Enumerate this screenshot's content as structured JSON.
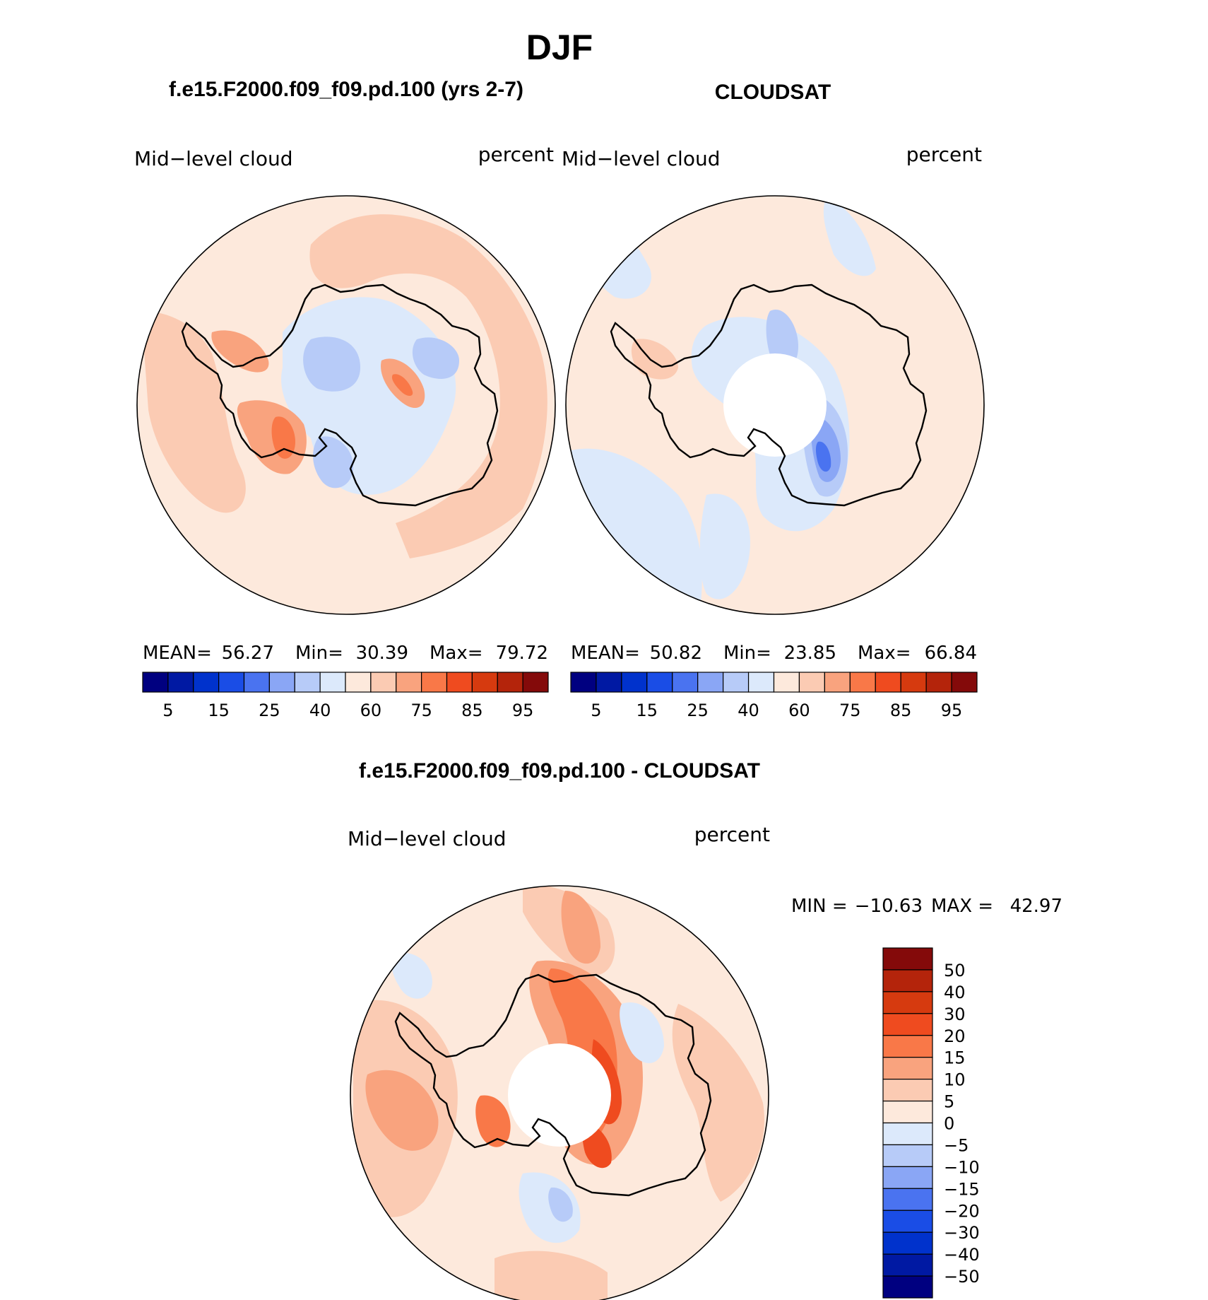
{
  "title": "DJF",
  "colors": {
    "scale": [
      "#000080",
      "#0019a3",
      "#0032cc",
      "#1a4de6",
      "#4a73f0",
      "#8aa6f5",
      "#b7cbf8",
      "#dce9fb",
      "#fde9dc",
      "#fbcbb3",
      "#f9a37e",
      "#f97848",
      "#ef4b1f",
      "#d63a0f",
      "#b4240b",
      "#840a0a"
    ],
    "diff": [
      "#000080",
      "#0019a3",
      "#0032cc",
      "#1a4de6",
      "#4a73f0",
      "#8aa6f5",
      "#b7cbf8",
      "#dce9fb",
      "#fde9dc",
      "#fbcbb3",
      "#f9a37e",
      "#f97848",
      "#ef4b1f",
      "#d63a0f",
      "#b4240b",
      "#840a0a"
    ],
    "coast": "#000000"
  },
  "chart_data": [
    {
      "type": "heatmap",
      "projection": "south-polar-stereographic",
      "title": "f.e15.F2000.f09_f09.pd.100 (yrs 2-7)",
      "left_label": "Mid−level cloud",
      "right_label": "percent",
      "stats": {
        "mean_label": "MEAN=",
        "mean": "56.27",
        "min_label": "Min=",
        "min": "30.39",
        "max_label": "Max=",
        "max": "79.72"
      },
      "colorbar": {
        "orientation": "horizontal",
        "levels": [
          5,
          10,
          15,
          20,
          25,
          30,
          40,
          50,
          60,
          70,
          75,
          80,
          85,
          90,
          95
        ],
        "tick_labels": [
          "5",
          "15",
          "25",
          "40",
          "60",
          "75",
          "85",
          "95"
        ]
      },
      "regions": [
        {
          "desc": "ocean background",
          "level_index": 8
        },
        {
          "desc": "Antarctic interior",
          "level_index": 7
        },
        {
          "desc": "Ross/Pacific sector band",
          "level_index": 9
        },
        {
          "desc": "Peninsula coast",
          "level_index": 11
        },
        {
          "desc": "interior low",
          "level_index": 6
        }
      ]
    },
    {
      "type": "heatmap",
      "projection": "south-polar-stereographic",
      "title": "CLOUDSAT",
      "left_label": "Mid−level cloud",
      "right_label": "percent",
      "stats": {
        "mean_label": "MEAN=",
        "mean": "50.82",
        "min_label": "Min=",
        "min": "23.85",
        "max_label": "Max=",
        "max": "66.84"
      },
      "colorbar": {
        "orientation": "horizontal",
        "levels": [
          5,
          10,
          15,
          20,
          25,
          30,
          40,
          50,
          60,
          70,
          75,
          80,
          85,
          90,
          95
        ],
        "tick_labels": [
          "5",
          "15",
          "25",
          "40",
          "60",
          "75",
          "85",
          "95"
        ]
      },
      "regions": [
        {
          "desc": "ocean background",
          "level_index": 8
        },
        {
          "desc": "interior",
          "level_index": 7
        },
        {
          "desc": "East Antarctica low",
          "level_index": 5
        },
        {
          "desc": "missing polar cap",
          "level_index": null
        }
      ]
    },
    {
      "type": "heatmap",
      "projection": "south-polar-stereographic",
      "title": "f.e15.F2000.f09_f09.pd.100 - CLOUDSAT",
      "left_label": "Mid−level cloud",
      "right_label": "percent",
      "stats": {
        "min_label": "MIN =",
        "min": "−10.63",
        "max_label": "MAX =",
        "max": "42.97"
      },
      "colorbar": {
        "orientation": "vertical",
        "levels": [
          -50,
          -40,
          -30,
          -20,
          -15,
          -10,
          -5,
          0,
          5,
          10,
          15,
          20,
          30,
          40,
          50
        ],
        "tick_labels": [
          "50",
          "40",
          "30",
          "20",
          "15",
          "10",
          "5",
          "0",
          "−5",
          "−10",
          "−15",
          "−20",
          "−30",
          "−40",
          "−50"
        ]
      },
      "regions": [
        {
          "desc": "ocean background",
          "level_index": 8
        },
        {
          "desc": "coastal band",
          "level_index": 9
        },
        {
          "desc": "East Antarctic interior high",
          "level_index": 12
        },
        {
          "desc": "missing polar cap",
          "level_index": null
        }
      ]
    }
  ]
}
